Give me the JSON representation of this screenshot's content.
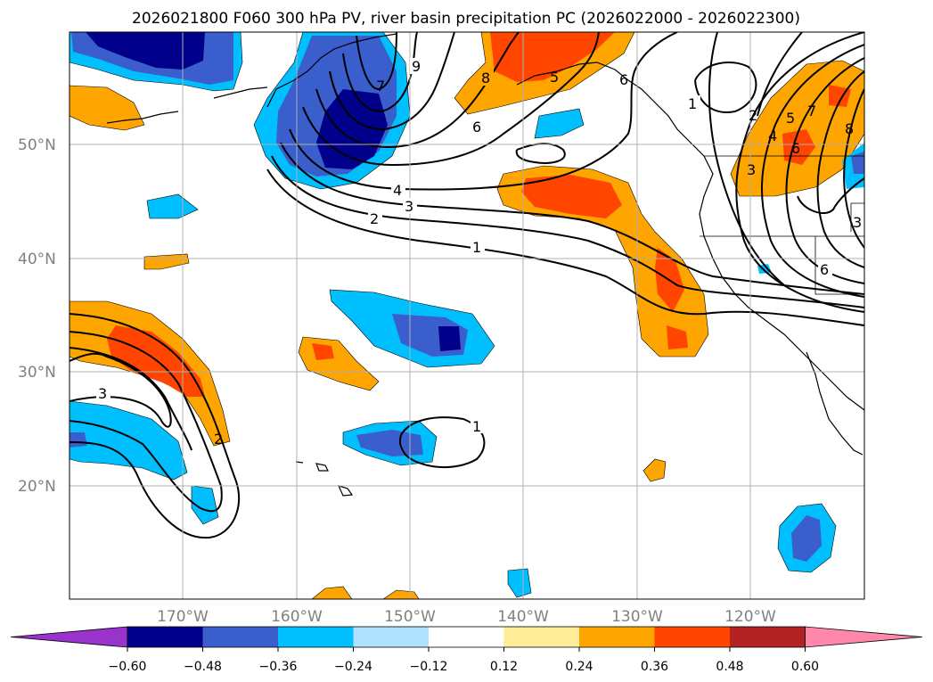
{
  "title": "2026021800 F060 300 hPa PV, river basin precipitation PC (2026022000 - 2026022300)",
  "lon_labels": [
    "170°W",
    "160°W",
    "150°W",
    "140°W",
    "130°W",
    "120°W"
  ],
  "lat_labels": [
    "50°N",
    "40°N",
    "30°N",
    "20°N"
  ],
  "colorbar": {
    "labels": [
      "-0.60",
      "-0.48",
      "-0.36",
      "-0.24",
      "-0.12",
      "0.12",
      "0.24",
      "0.36",
      "0.48",
      "0.60"
    ],
    "colors": [
      "#9933cc",
      "#00008b",
      "#3a5fcd",
      "#00bfff",
      "#b0e2ff",
      "#ffffff",
      "#ffee99",
      "#ffa500",
      "#ff4500",
      "#b22222",
      "#ff88aa"
    ]
  },
  "contour_labels": [
    "1",
    "2",
    "3",
    "4",
    "6",
    "8",
    "9",
    "7",
    "5",
    "6",
    "1",
    "3",
    "2",
    "1",
    "2",
    "3",
    "4",
    "5",
    "6",
    "6",
    "7",
    "8",
    "3"
  ],
  "colors": {
    "grid": "#b0b0b0",
    "tick_text": "#808080",
    "contour": "#000000"
  }
}
